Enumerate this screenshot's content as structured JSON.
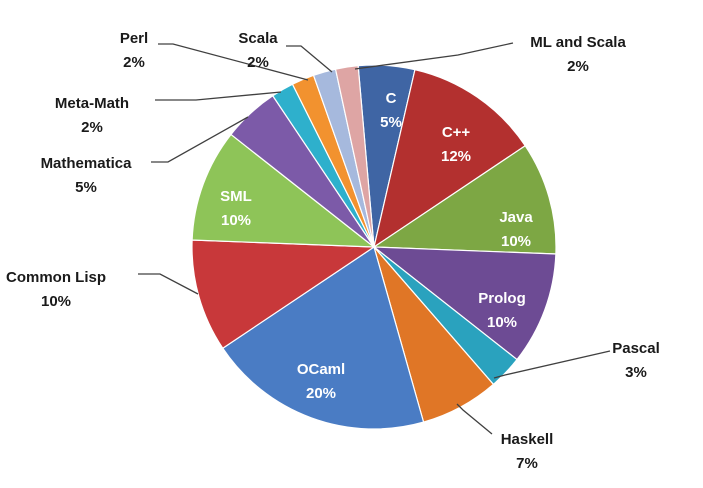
{
  "chart_data": {
    "type": "pie",
    "start_angle_deg": -5,
    "direction": "clockwise",
    "legend": "none",
    "slices": [
      {
        "label": "C",
        "value": 5,
        "pct_label": "5%",
        "color": "#3f65a4",
        "placement": "inside"
      },
      {
        "label": "C++",
        "value": 12,
        "pct_label": "12%",
        "color": "#b3302f",
        "placement": "inside"
      },
      {
        "label": "Java",
        "value": 10,
        "pct_label": "10%",
        "color": "#7da744",
        "placement": "inside"
      },
      {
        "label": "Prolog",
        "value": 10,
        "pct_label": "10%",
        "color": "#6d4b94",
        "placement": "inside"
      },
      {
        "label": "Pascal",
        "value": 3,
        "pct_label": "3%",
        "color": "#2aa2be",
        "placement": "outside"
      },
      {
        "label": "Haskell",
        "value": 7,
        "pct_label": "7%",
        "color": "#e07626",
        "placement": "outside"
      },
      {
        "label": "OCaml",
        "value": 20,
        "pct_label": "20%",
        "color": "#4a7cc4",
        "placement": "inside"
      },
      {
        "label": "Common Lisp",
        "value": 10,
        "pct_label": "10%",
        "color": "#c8383a",
        "placement": "outside"
      },
      {
        "label": "SML",
        "value": 10,
        "pct_label": "10%",
        "color": "#8ec458",
        "placement": "inside"
      },
      {
        "label": "Mathematica",
        "value": 5,
        "pct_label": "5%",
        "color": "#7c5aa8",
        "placement": "outside"
      },
      {
        "label": "Meta-Math",
        "value": 2,
        "pct_label": "2%",
        "color": "#2eb0cc",
        "placement": "outside"
      },
      {
        "label": "Perl",
        "value": 2,
        "pct_label": "2%",
        "color": "#f2922f",
        "placement": "outside"
      },
      {
        "label": "Scala",
        "value": 2,
        "pct_label": "2%",
        "color": "#a6b9dd",
        "placement": "outside"
      },
      {
        "label": "ML and Scala",
        "value": 2,
        "pct_label": "2%",
        "color": "#dea5a4",
        "placement": "outside"
      }
    ]
  }
}
